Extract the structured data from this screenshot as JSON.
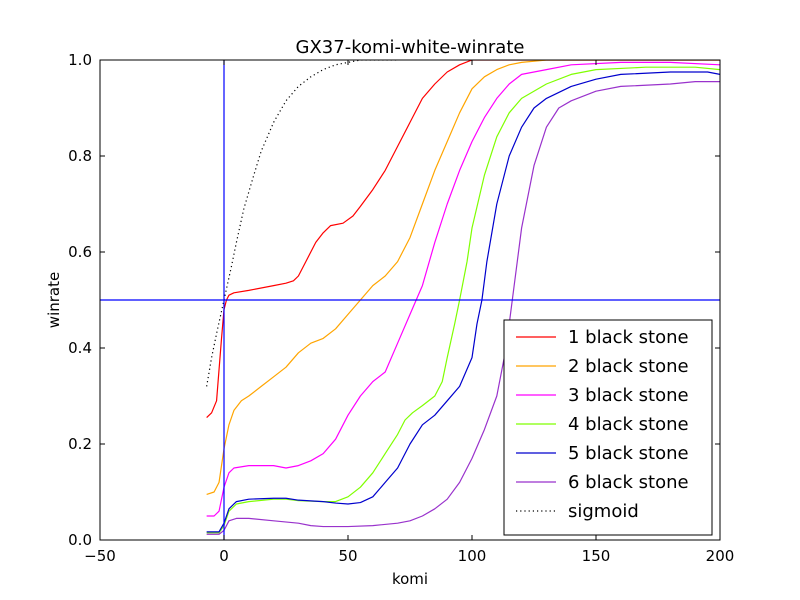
{
  "chart_data": {
    "type": "line",
    "title": "GX37-komi-white-winrate",
    "xlabel": "komi",
    "ylabel": "winrate",
    "xlim": [
      -50,
      200
    ],
    "ylim": [
      0.0,
      1.0
    ],
    "xticks": [
      -50,
      0,
      50,
      100,
      150,
      200
    ],
    "xtick_labels": [
      "−50",
      "0",
      "50",
      "100",
      "150",
      "200"
    ],
    "yticks": [
      0.0,
      0.2,
      0.4,
      0.6,
      0.8,
      1.0
    ],
    "ytick_labels": [
      "0.0",
      "0.2",
      "0.4",
      "0.6",
      "0.8",
      "1.0"
    ],
    "grid": false,
    "legend_position": "lower-right",
    "reference_lines": {
      "vertical_x": 0,
      "horizontal_y": 0.5,
      "color": "#0000ff"
    },
    "series": [
      {
        "name": "1 black stone",
        "color": "#ff0000",
        "style": "solid",
        "points": [
          [
            -7,
            0.255
          ],
          [
            -5,
            0.265
          ],
          [
            -3,
            0.29
          ],
          [
            -1,
            0.42
          ],
          [
            0,
            0.48
          ],
          [
            1,
            0.5
          ],
          [
            2,
            0.51
          ],
          [
            4,
            0.515
          ],
          [
            10,
            0.52
          ],
          [
            20,
            0.53
          ],
          [
            25,
            0.535
          ],
          [
            28,
            0.54
          ],
          [
            30,
            0.55
          ],
          [
            33,
            0.58
          ],
          [
            37,
            0.62
          ],
          [
            40,
            0.64
          ],
          [
            43,
            0.655
          ],
          [
            48,
            0.66
          ],
          [
            52,
            0.675
          ],
          [
            55,
            0.695
          ],
          [
            60,
            0.73
          ],
          [
            65,
            0.77
          ],
          [
            70,
            0.82
          ],
          [
            75,
            0.87
          ],
          [
            80,
            0.92
          ],
          [
            85,
            0.95
          ],
          [
            90,
            0.975
          ],
          [
            95,
            0.99
          ],
          [
            100,
            1.0
          ],
          [
            200,
            1.0
          ]
        ]
      },
      {
        "name": "2 black stone",
        "color": "#ffa500",
        "style": "solid",
        "points": [
          [
            -7,
            0.095
          ],
          [
            -4,
            0.1
          ],
          [
            -2,
            0.12
          ],
          [
            0,
            0.19
          ],
          [
            2,
            0.24
          ],
          [
            4,
            0.27
          ],
          [
            7,
            0.29
          ],
          [
            10,
            0.3
          ],
          [
            15,
            0.32
          ],
          [
            20,
            0.34
          ],
          [
            25,
            0.36
          ],
          [
            30,
            0.39
          ],
          [
            35,
            0.41
          ],
          [
            40,
            0.42
          ],
          [
            45,
            0.44
          ],
          [
            50,
            0.47
          ],
          [
            55,
            0.5
          ],
          [
            60,
            0.53
          ],
          [
            65,
            0.55
          ],
          [
            70,
            0.58
          ],
          [
            75,
            0.63
          ],
          [
            80,
            0.7
          ],
          [
            85,
            0.77
          ],
          [
            90,
            0.83
          ],
          [
            95,
            0.89
          ],
          [
            100,
            0.94
          ],
          [
            105,
            0.965
          ],
          [
            110,
            0.98
          ],
          [
            115,
            0.99
          ],
          [
            120,
            0.995
          ],
          [
            130,
            1.0
          ],
          [
            200,
            1.0
          ]
        ]
      },
      {
        "name": "3 black stone",
        "color": "#ff00ff",
        "style": "solid",
        "points": [
          [
            -7,
            0.05
          ],
          [
            -4,
            0.05
          ],
          [
            -2,
            0.06
          ],
          [
            0,
            0.11
          ],
          [
            2,
            0.14
          ],
          [
            4,
            0.15
          ],
          [
            10,
            0.155
          ],
          [
            20,
            0.155
          ],
          [
            25,
            0.15
          ],
          [
            30,
            0.155
          ],
          [
            35,
            0.165
          ],
          [
            40,
            0.18
          ],
          [
            45,
            0.21
          ],
          [
            50,
            0.26
          ],
          [
            55,
            0.3
          ],
          [
            60,
            0.33
          ],
          [
            65,
            0.35
          ],
          [
            70,
            0.41
          ],
          [
            75,
            0.47
          ],
          [
            80,
            0.53
          ],
          [
            85,
            0.62
          ],
          [
            90,
            0.7
          ],
          [
            95,
            0.77
          ],
          [
            100,
            0.83
          ],
          [
            105,
            0.88
          ],
          [
            110,
            0.92
          ],
          [
            115,
            0.95
          ],
          [
            120,
            0.97
          ],
          [
            130,
            0.98
          ],
          [
            140,
            0.99
          ],
          [
            160,
            0.995
          ],
          [
            180,
            0.995
          ],
          [
            200,
            0.99
          ]
        ]
      },
      {
        "name": "4 black stone",
        "color": "#7fff00",
        "style": "solid",
        "points": [
          [
            -7,
            0.015
          ],
          [
            -2,
            0.015
          ],
          [
            0,
            0.03
          ],
          [
            2,
            0.06
          ],
          [
            5,
            0.075
          ],
          [
            10,
            0.08
          ],
          [
            20,
            0.085
          ],
          [
            25,
            0.085
          ],
          [
            30,
            0.082
          ],
          [
            40,
            0.08
          ],
          [
            45,
            0.08
          ],
          [
            50,
            0.09
          ],
          [
            55,
            0.11
          ],
          [
            60,
            0.14
          ],
          [
            65,
            0.18
          ],
          [
            70,
            0.22
          ],
          [
            73,
            0.25
          ],
          [
            76,
            0.265
          ],
          [
            80,
            0.28
          ],
          [
            85,
            0.3
          ],
          [
            88,
            0.33
          ],
          [
            90,
            0.38
          ],
          [
            93,
            0.45
          ],
          [
            95,
            0.5
          ],
          [
            98,
            0.58
          ],
          [
            100,
            0.65
          ],
          [
            105,
            0.76
          ],
          [
            110,
            0.84
          ],
          [
            115,
            0.89
          ],
          [
            120,
            0.92
          ],
          [
            130,
            0.95
          ],
          [
            140,
            0.97
          ],
          [
            150,
            0.98
          ],
          [
            170,
            0.985
          ],
          [
            190,
            0.985
          ],
          [
            200,
            0.98
          ]
        ]
      },
      {
        "name": "5 black stone",
        "color": "#0000cd",
        "style": "solid",
        "points": [
          [
            -7,
            0.017
          ],
          [
            -2,
            0.017
          ],
          [
            0,
            0.035
          ],
          [
            2,
            0.065
          ],
          [
            5,
            0.08
          ],
          [
            10,
            0.085
          ],
          [
            20,
            0.087
          ],
          [
            25,
            0.087
          ],
          [
            30,
            0.083
          ],
          [
            40,
            0.08
          ],
          [
            45,
            0.077
          ],
          [
            50,
            0.075
          ],
          [
            55,
            0.078
          ],
          [
            60,
            0.09
          ],
          [
            65,
            0.12
          ],
          [
            70,
            0.15
          ],
          [
            75,
            0.2
          ],
          [
            80,
            0.24
          ],
          [
            85,
            0.26
          ],
          [
            90,
            0.29
          ],
          [
            95,
            0.32
          ],
          [
            100,
            0.38
          ],
          [
            102,
            0.45
          ],
          [
            104,
            0.5
          ],
          [
            106,
            0.58
          ],
          [
            110,
            0.7
          ],
          [
            115,
            0.8
          ],
          [
            120,
            0.86
          ],
          [
            125,
            0.9
          ],
          [
            130,
            0.92
          ],
          [
            140,
            0.945
          ],
          [
            150,
            0.96
          ],
          [
            160,
            0.97
          ],
          [
            180,
            0.975
          ],
          [
            195,
            0.975
          ],
          [
            200,
            0.97
          ]
        ]
      },
      {
        "name": "6 black stone",
        "color": "#9932cc",
        "style": "solid",
        "points": [
          [
            -7,
            0.012
          ],
          [
            -2,
            0.012
          ],
          [
            0,
            0.02
          ],
          [
            2,
            0.04
          ],
          [
            5,
            0.045
          ],
          [
            10,
            0.045
          ],
          [
            20,
            0.04
          ],
          [
            30,
            0.035
          ],
          [
            35,
            0.03
          ],
          [
            40,
            0.028
          ],
          [
            50,
            0.028
          ],
          [
            60,
            0.03
          ],
          [
            70,
            0.035
          ],
          [
            75,
            0.04
          ],
          [
            80,
            0.05
          ],
          [
            85,
            0.065
          ],
          [
            90,
            0.085
          ],
          [
            95,
            0.12
          ],
          [
            100,
            0.17
          ],
          [
            105,
            0.23
          ],
          [
            110,
            0.3
          ],
          [
            113,
            0.38
          ],
          [
            115,
            0.45
          ],
          [
            117,
            0.53
          ],
          [
            120,
            0.65
          ],
          [
            125,
            0.78
          ],
          [
            130,
            0.86
          ],
          [
            135,
            0.9
          ],
          [
            140,
            0.915
          ],
          [
            150,
            0.935
          ],
          [
            160,
            0.945
          ],
          [
            180,
            0.95
          ],
          [
            190,
            0.955
          ],
          [
            200,
            0.955
          ]
        ]
      },
      {
        "name": "sigmoid",
        "color": "#000000",
        "style": "dotted",
        "points": [
          [
            -7,
            0.32
          ],
          [
            -5,
            0.38
          ],
          [
            -3,
            0.43
          ],
          [
            0,
            0.5
          ],
          [
            3,
            0.57
          ],
          [
            5,
            0.62
          ],
          [
            8,
            0.69
          ],
          [
            12,
            0.76
          ],
          [
            15,
            0.81
          ],
          [
            20,
            0.87
          ],
          [
            25,
            0.915
          ],
          [
            30,
            0.945
          ],
          [
            35,
            0.965
          ],
          [
            40,
            0.98
          ],
          [
            45,
            0.99
          ],
          [
            50,
            0.995
          ],
          [
            55,
            1.0
          ],
          [
            60,
            1.0
          ],
          [
            70,
            1.0
          ]
        ]
      }
    ]
  }
}
